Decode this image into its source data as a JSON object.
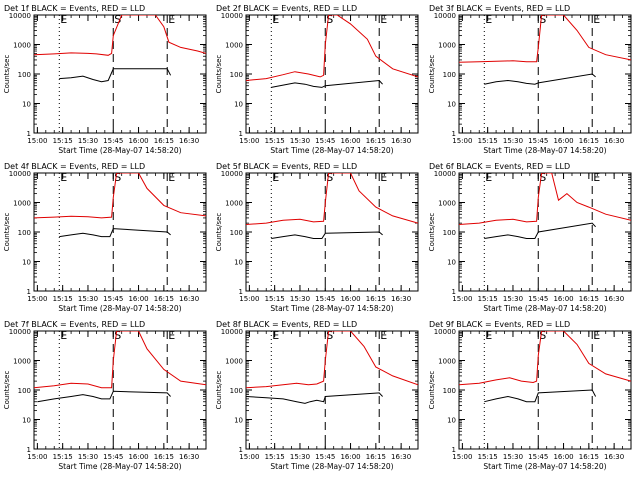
{
  "colors": {
    "events": "#000000",
    "lld": "#e00000",
    "axes": "#000000",
    "background": "#ffffff"
  },
  "chart_data": [
    {
      "type": "line",
      "title": "Det 1f BLACK = Events, RED = LLD",
      "xlabel": "Start Time (28-May-07 14:58:20)",
      "ylabel": "Counts/sec",
      "x_ticks": [
        "15:00",
        "15:15",
        "15:30",
        "15:45",
        "16:00",
        "16:15",
        "16:30"
      ],
      "y_ticks": [
        "1",
        "10",
        "100",
        "1000",
        "10000"
      ],
      "xlim": [
        "14:58",
        "16:40"
      ],
      "ylim": [
        1,
        10000
      ],
      "y_scale": "log",
      "markers": [
        {
          "time": "15:13",
          "style": "dotted",
          "label": "E"
        },
        {
          "time": "15:45",
          "style": "dashed",
          "label": "S"
        },
        {
          "time": "16:17",
          "style": "dashed",
          "label": "E"
        }
      ],
      "series": [
        {
          "name": "BLACK = Events",
          "color": "black",
          "time": [
            "15:13",
            "15:20",
            "15:27",
            "15:33",
            "15:38",
            "15:42",
            "15:45",
            "16:17",
            "16:19"
          ],
          "values": [
            70,
            75,
            85,
            65,
            55,
            60,
            150,
            150,
            90
          ]
        },
        {
          "name": "RED = LLD",
          "color": "red",
          "time": [
            "14:58",
            "15:10",
            "15:20",
            "15:30",
            "15:35",
            "15:42",
            "15:44",
            "15:45",
            "15:50",
            "16:05",
            "16:10",
            "16:15",
            "16:18",
            "16:25",
            "16:35",
            "16:40"
          ],
          "values": [
            450,
            480,
            520,
            500,
            480,
            430,
            500,
            2000,
            10000,
            10000,
            10000,
            4000,
            1200,
            800,
            600,
            500
          ]
        }
      ]
    },
    {
      "type": "line",
      "title": "Det 2f BLACK = Events, RED = LLD",
      "xlabel": "Start Time (28-May-07 14:58:20)",
      "ylabel": "Counts/sec",
      "x_ticks": [
        "15:00",
        "15:15",
        "15:30",
        "15:45",
        "16:00",
        "16:15",
        "16:30"
      ],
      "y_ticks": [
        "1",
        "10",
        "100",
        "1000",
        "10000"
      ],
      "xlim": [
        "14:58",
        "16:40"
      ],
      "ylim": [
        1,
        10000
      ],
      "y_scale": "log",
      "markers": [
        {
          "time": "15:13",
          "style": "dotted",
          "label": "E"
        },
        {
          "time": "15:45",
          "style": "dashed",
          "label": "S"
        },
        {
          "time": "16:17",
          "style": "dashed",
          "label": "E"
        }
      ],
      "series": [
        {
          "name": "BLACK = Events",
          "color": "black",
          "time": [
            "15:13",
            "15:20",
            "15:27",
            "15:33",
            "15:38",
            "15:43",
            "15:45",
            "16:17",
            "16:19"
          ],
          "values": [
            35,
            42,
            50,
            45,
            38,
            35,
            40,
            60,
            45
          ]
        },
        {
          "name": "RED = LLD",
          "color": "red",
          "time": [
            "14:58",
            "15:10",
            "15:20",
            "15:27",
            "15:35",
            "15:42",
            "15:44",
            "15:45",
            "15:47",
            "15:52",
            "16:00",
            "16:10",
            "16:15",
            "16:25",
            "16:40"
          ],
          "values": [
            60,
            70,
            95,
            120,
            100,
            80,
            90,
            1000,
            10000,
            10000,
            5000,
            1500,
            400,
            150,
            80
          ]
        }
      ]
    },
    {
      "type": "line",
      "title": "Det 3f BLACK = Events, RED = LLD",
      "xlabel": "Start Time (28-May-07 14:58:20)",
      "ylabel": "Counts/sec",
      "x_ticks": [
        "15:00",
        "15:15",
        "15:30",
        "15:45",
        "16:00",
        "16:15",
        "16:30"
      ],
      "y_ticks": [
        "1",
        "10",
        "100",
        "1000",
        "10000"
      ],
      "xlim": [
        "14:58",
        "16:40"
      ],
      "ylim": [
        1,
        10000
      ],
      "y_scale": "log",
      "markers": [
        {
          "time": "15:13",
          "style": "dotted",
          "label": "E"
        },
        {
          "time": "15:45",
          "style": "dashed",
          "label": "S"
        },
        {
          "time": "16:17",
          "style": "dashed",
          "label": "E"
        }
      ],
      "series": [
        {
          "name": "BLACK = Events",
          "color": "black",
          "time": [
            "15:13",
            "15:20",
            "15:27",
            "15:33",
            "15:38",
            "15:43",
            "15:45",
            "16:17",
            "16:19"
          ],
          "values": [
            45,
            55,
            60,
            55,
            48,
            45,
            50,
            100,
            80
          ]
        },
        {
          "name": "RED = LLD",
          "color": "red",
          "time": [
            "14:58",
            "15:10",
            "15:20",
            "15:30",
            "15:38",
            "15:44",
            "15:45",
            "15:47",
            "15:53",
            "16:00",
            "16:08",
            "16:15",
            "16:25",
            "16:40"
          ],
          "values": [
            250,
            260,
            270,
            280,
            260,
            260,
            800,
            10000,
            10000,
            10000,
            3000,
            800,
            450,
            300
          ]
        }
      ]
    },
    {
      "type": "line",
      "title": "Det 4f BLACK = Events, RED = LLD",
      "xlabel": "Start Time (28-May-07 14:58:20)",
      "ylabel": "Counts/sec",
      "x_ticks": [
        "15:00",
        "15:15",
        "15:30",
        "15:45",
        "16:00",
        "16:15",
        "16:30"
      ],
      "y_ticks": [
        "1",
        "10",
        "100",
        "1000",
        "10000"
      ],
      "xlim": [
        "14:58",
        "16:40"
      ],
      "ylim": [
        1,
        10000
      ],
      "y_scale": "log",
      "markers": [
        {
          "time": "15:13",
          "style": "dotted",
          "label": "E"
        },
        {
          "time": "15:45",
          "style": "dashed",
          "label": "S"
        },
        {
          "time": "16:17",
          "style": "dashed",
          "label": "E"
        }
      ],
      "series": [
        {
          "name": "BLACK = Events",
          "color": "black",
          "time": [
            "15:13",
            "15:20",
            "15:27",
            "15:33",
            "15:38",
            "15:43",
            "15:45",
            "16:17",
            "16:19"
          ],
          "values": [
            70,
            80,
            90,
            80,
            70,
            70,
            130,
            100,
            80
          ]
        },
        {
          "name": "RED = LLD",
          "color": "red",
          "time": [
            "14:58",
            "15:10",
            "15:20",
            "15:30",
            "15:38",
            "15:44",
            "15:45",
            "15:47",
            "15:53",
            "16:00",
            "16:05",
            "16:15",
            "16:25",
            "16:40"
          ],
          "values": [
            300,
            320,
            340,
            330,
            300,
            320,
            1500,
            10000,
            10000,
            10000,
            3000,
            800,
            450,
            350
          ]
        }
      ]
    },
    {
      "type": "line",
      "title": "Det 5f BLACK = Events, RED = LLD",
      "xlabel": "Start Time (28-May-07 14:58:20)",
      "ylabel": "Counts/sec",
      "x_ticks": [
        "15:00",
        "15:15",
        "15:30",
        "15:45",
        "16:00",
        "16:15",
        "16:30"
      ],
      "y_ticks": [
        "1",
        "10",
        "100",
        "1000",
        "10000"
      ],
      "xlim": [
        "14:58",
        "16:40"
      ],
      "ylim": [
        1,
        10000
      ],
      "y_scale": "log",
      "markers": [
        {
          "time": "15:13",
          "style": "dotted",
          "label": "E"
        },
        {
          "time": "15:45",
          "style": "dashed",
          "label": "S"
        },
        {
          "time": "16:17",
          "style": "dashed",
          "label": "E"
        }
      ],
      "series": [
        {
          "name": "BLACK = Events",
          "color": "black",
          "time": [
            "15:13",
            "15:20",
            "15:27",
            "15:33",
            "15:38",
            "15:43",
            "15:45",
            "16:17",
            "16:19"
          ],
          "values": [
            60,
            70,
            80,
            70,
            60,
            60,
            90,
            100,
            80
          ]
        },
        {
          "name": "RED = LLD",
          "color": "red",
          "time": [
            "14:58",
            "15:10",
            "15:20",
            "15:30",
            "15:38",
            "15:44",
            "15:45",
            "15:47",
            "15:53",
            "16:00",
            "16:05",
            "16:15",
            "16:25",
            "16:40"
          ],
          "values": [
            180,
            200,
            250,
            270,
            220,
            230,
            1000,
            10000,
            10000,
            10000,
            2500,
            700,
            350,
            200
          ]
        }
      ]
    },
    {
      "type": "line",
      "title": "Det 6f BLACK = Events, RED = LLD",
      "xlabel": "Start Time (28-May-07 14:58:20)",
      "ylabel": "Counts/sec",
      "x_ticks": [
        "15:00",
        "15:15",
        "15:30",
        "15:45",
        "16:00",
        "16:15",
        "16:30"
      ],
      "y_ticks": [
        "1",
        "10",
        "100",
        "1000",
        "10000"
      ],
      "xlim": [
        "14:58",
        "16:40"
      ],
      "ylim": [
        1,
        10000
      ],
      "y_scale": "log",
      "markers": [
        {
          "time": "15:13",
          "style": "dotted",
          "label": "E"
        },
        {
          "time": "15:45",
          "style": "dashed",
          "label": "S"
        },
        {
          "time": "16:17",
          "style": "dashed",
          "label": "E"
        }
      ],
      "series": [
        {
          "name": "BLACK = Events",
          "color": "black",
          "time": [
            "15:13",
            "15:20",
            "15:27",
            "15:33",
            "15:38",
            "15:43",
            "15:45",
            "16:17",
            "16:19"
          ],
          "values": [
            60,
            70,
            80,
            70,
            60,
            60,
            100,
            200,
            150
          ]
        },
        {
          "name": "RED = LLD",
          "color": "red",
          "time": [
            "14:58",
            "15:10",
            "15:20",
            "15:30",
            "15:38",
            "15:44",
            "15:45",
            "15:47",
            "15:53",
            "15:57",
            "16:02",
            "16:08",
            "16:15",
            "16:25",
            "16:40"
          ],
          "values": [
            180,
            200,
            250,
            270,
            220,
            230,
            1500,
            10000,
            10000,
            1200,
            2000,
            1000,
            700,
            400,
            250
          ]
        }
      ]
    },
    {
      "type": "line",
      "title": "Det 7f BLACK = Events, RED = LLD",
      "xlabel": "Start Time (28-May-07 14:58:20)",
      "ylabel": "Counts/sec",
      "x_ticks": [
        "15:00",
        "15:15",
        "15:30",
        "15:45",
        "16:00",
        "16:15",
        "16:30"
      ],
      "y_ticks": [
        "1",
        "10",
        "100",
        "1000",
        "10000"
      ],
      "xlim": [
        "14:58",
        "16:40"
      ],
      "ylim": [
        1,
        10000
      ],
      "y_scale": "log",
      "markers": [
        {
          "time": "15:13",
          "style": "dotted",
          "label": "E"
        },
        {
          "time": "15:45",
          "style": "dashed",
          "label": "S"
        },
        {
          "time": "16:17",
          "style": "dashed",
          "label": "E"
        }
      ],
      "series": [
        {
          "name": "BLACK = Events",
          "color": "black",
          "time": [
            "15:00",
            "15:10",
            "15:20",
            "15:27",
            "15:33",
            "15:38",
            "15:43",
            "15:45",
            "16:17",
            "16:19"
          ],
          "values": [
            40,
            50,
            60,
            70,
            60,
            50,
            50,
            90,
            80,
            60
          ]
        },
        {
          "name": "RED = LLD",
          "color": "red",
          "time": [
            "14:58",
            "15:10",
            "15:20",
            "15:30",
            "15:38",
            "15:44",
            "15:45",
            "15:47",
            "15:53",
            "16:00",
            "16:05",
            "16:15",
            "16:25",
            "16:40"
          ],
          "values": [
            120,
            140,
            170,
            160,
            120,
            120,
            1000,
            10000,
            10000,
            10000,
            2500,
            500,
            200,
            150
          ]
        }
      ]
    },
    {
      "type": "line",
      "title": "Det 8f BLACK = Events, RED = LLD",
      "xlabel": "Start Time (28-May-07 14:58:20)",
      "ylabel": "Counts/sec",
      "x_ticks": [
        "15:00",
        "15:15",
        "15:30",
        "15:45",
        "16:00",
        "16:15",
        "16:30"
      ],
      "y_ticks": [
        "1",
        "10",
        "100",
        "1000",
        "10000"
      ],
      "xlim": [
        "14:58",
        "16:40"
      ],
      "ylim": [
        1,
        10000
      ],
      "y_scale": "log",
      "markers": [
        {
          "time": "15:13",
          "style": "dotted",
          "label": "E"
        },
        {
          "time": "15:45",
          "style": "dashed",
          "label": "S"
        },
        {
          "time": "16:17",
          "style": "dashed",
          "label": "E"
        }
      ],
      "series": [
        {
          "name": "BLACK = Events",
          "color": "black",
          "time": [
            "14:58",
            "15:10",
            "15:20",
            "15:28",
            "15:33",
            "15:36",
            "15:40",
            "15:44",
            "15:45",
            "16:17",
            "16:19"
          ],
          "values": [
            60,
            55,
            50,
            40,
            35,
            40,
            45,
            40,
            60,
            80,
            60
          ]
        },
        {
          "name": "RED = LLD",
          "color": "red",
          "time": [
            "14:58",
            "15:10",
            "15:20",
            "15:28",
            "15:35",
            "15:40",
            "15:44",
            "15:45",
            "15:47",
            "15:53",
            "16:00",
            "16:08",
            "16:15",
            "16:25",
            "16:40"
          ],
          "values": [
            120,
            130,
            150,
            170,
            150,
            160,
            200,
            1000,
            10000,
            10000,
            10000,
            3000,
            600,
            300,
            150
          ]
        }
      ]
    },
    {
      "type": "line",
      "title": "Det 9f BLACK = Events, RED = LLD",
      "xlabel": "Start Time (28-May-07 14:58:20)",
      "ylabel": "Counts/sec",
      "x_ticks": [
        "15:00",
        "15:15",
        "15:30",
        "15:45",
        "16:00",
        "16:15",
        "16:30"
      ],
      "y_ticks": [
        "1",
        "10",
        "100",
        "1000",
        "10000"
      ],
      "xlim": [
        "14:58",
        "16:40"
      ],
      "ylim": [
        1,
        10000
      ],
      "y_scale": "log",
      "markers": [
        {
          "time": "15:13",
          "style": "dotted",
          "label": "E"
        },
        {
          "time": "15:45",
          "style": "dashed",
          "label": "S"
        },
        {
          "time": "16:17",
          "style": "dashed",
          "label": "E"
        }
      ],
      "series": [
        {
          "name": "BLACK = Events",
          "color": "black",
          "time": [
            "15:13",
            "15:20",
            "15:27",
            "15:33",
            "15:38",
            "15:43",
            "15:45",
            "16:17",
            "16:19"
          ],
          "values": [
            40,
            50,
            60,
            50,
            40,
            40,
            80,
            100,
            60
          ]
        },
        {
          "name": "RED = LLD",
          "color": "red",
          "time": [
            "14:58",
            "15:10",
            "15:20",
            "15:28",
            "15:35",
            "15:42",
            "15:44",
            "15:45",
            "15:47",
            "15:53",
            "16:00",
            "16:08",
            "16:15",
            "16:25",
            "16:40"
          ],
          "values": [
            150,
            170,
            220,
            260,
            200,
            180,
            200,
            1500,
            10000,
            10000,
            10000,
            3500,
            800,
            350,
            200
          ]
        }
      ]
    }
  ]
}
